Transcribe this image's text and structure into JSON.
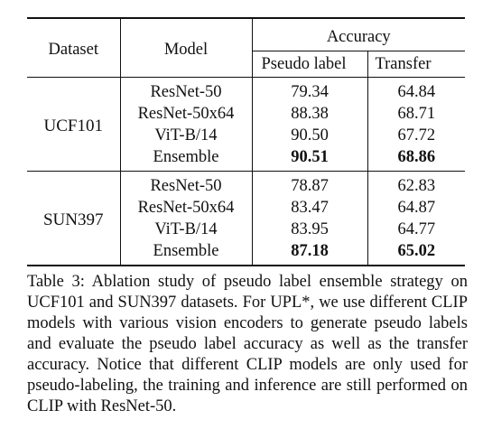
{
  "table": {
    "headers": {
      "dataset": "Dataset",
      "model": "Model",
      "accuracy": "Accuracy",
      "pseudo_label": "Pseudo label",
      "transfer": "Transfer"
    },
    "groups": [
      {
        "dataset": "UCF101",
        "rows": [
          {
            "model": "ResNet-50",
            "pseudo": "79.34",
            "transfer": "64.84",
            "bold": false
          },
          {
            "model": "ResNet-50x64",
            "pseudo": "88.38",
            "transfer": "68.71",
            "bold": false
          },
          {
            "model": "ViT-B/14",
            "pseudo": "90.50",
            "transfer": "67.72",
            "bold": false
          },
          {
            "model": "Ensemble",
            "pseudo": "90.51",
            "transfer": "68.86",
            "bold": true
          }
        ]
      },
      {
        "dataset": "SUN397",
        "rows": [
          {
            "model": "ResNet-50",
            "pseudo": "78.87",
            "transfer": "62.83",
            "bold": false
          },
          {
            "model": "ResNet-50x64",
            "pseudo": "83.47",
            "transfer": "64.87",
            "bold": false
          },
          {
            "model": "ViT-B/14",
            "pseudo": "83.95",
            "transfer": "64.77",
            "bold": false
          },
          {
            "model": "Ensemble",
            "pseudo": "87.18",
            "transfer": "65.02",
            "bold": true
          }
        ]
      }
    ]
  },
  "caption": "Table 3: Ablation study of pseudo label ensemble strategy on UCF101 and SUN397 datasets. For UPL*, we use different CLIP models with various vision encoders to generate pseudo labels and evaluate the pseudo label accuracy as well as the transfer accuracy. Notice that different CLIP models are only used for pseudo-labeling, the training and inference are still performed on CLIP with ResNet-50."
}
